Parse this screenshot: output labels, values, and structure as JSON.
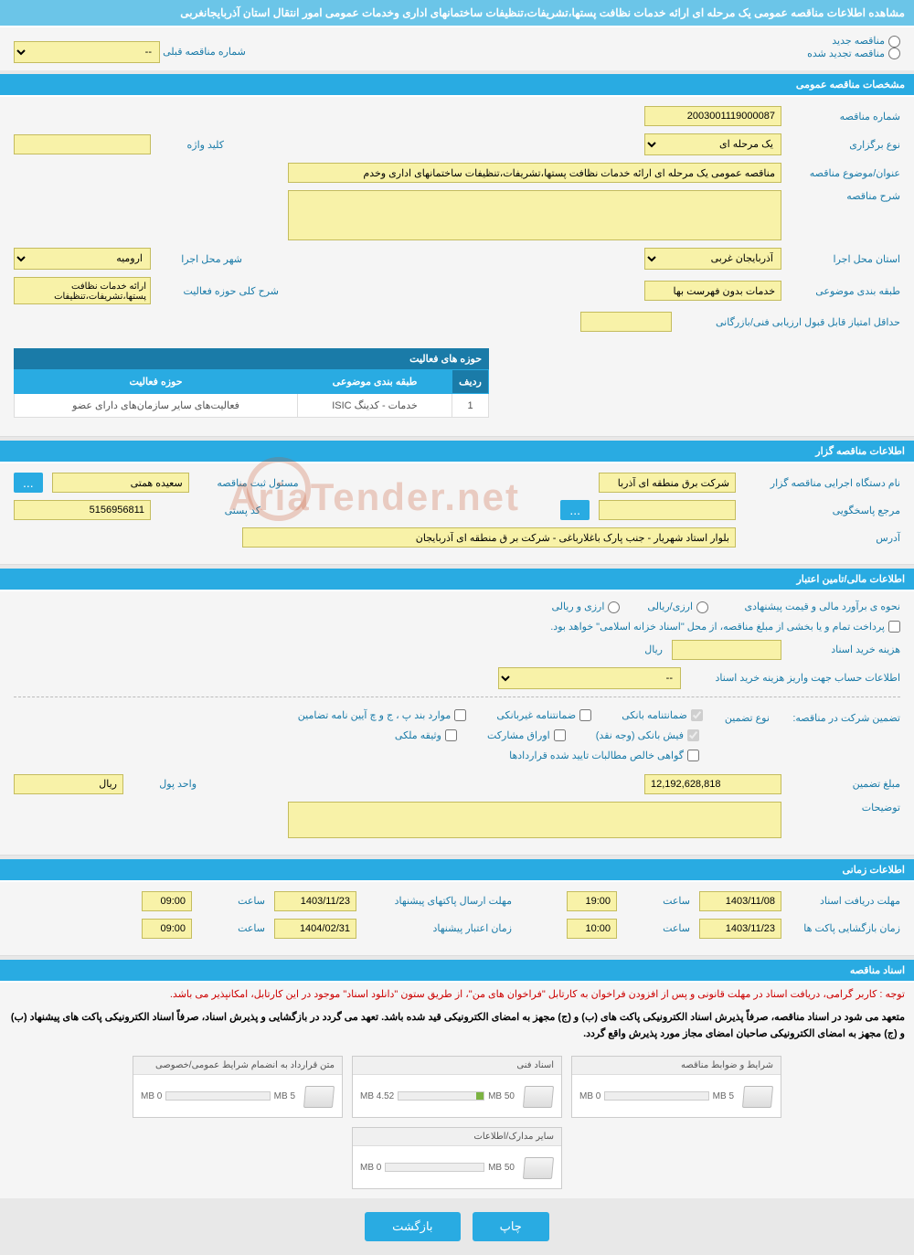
{
  "page_title": "مشاهده اطلاعات مناقصه عمومی یک مرحله ای ارائه خدمات نظافت پستها،تشریفات،تنظیفات ساختمانهای اداری وخدمات عمومی امور انتقال استان آذربایجانغربی",
  "radio_options": {
    "new": "مناقصه جدید",
    "renewed": "مناقصه تجدید شده"
  },
  "prev_tender": {
    "label": "شماره مناقصه قبلی",
    "value": "--"
  },
  "sections": {
    "general": "مشخصات مناقصه عمومی",
    "org": "اطلاعات مناقصه گزار",
    "financial": "اطلاعات مالی/تامین اعتبار",
    "timing": "اطلاعات زمانی",
    "docs": "اسناد مناقصه"
  },
  "general": {
    "tender_no": {
      "label": "شماره مناقصه",
      "value": "2003001119000087"
    },
    "type": {
      "label": "نوع برگزاری",
      "value": "یک مرحله ای"
    },
    "keyword": {
      "label": "کلید واژه",
      "value": ""
    },
    "subject": {
      "label": "عنوان/موضوع مناقصه",
      "value": "مناقصه عمومی یک مرحله ای ارائه خدمات نظافت پستها،تشریفات،تنظیفات ساختمانهای اداری وخدم"
    },
    "description": {
      "label": "شرح مناقصه",
      "value": ""
    },
    "province": {
      "label": "استان محل اجرا",
      "value": "آذربایجان غربی"
    },
    "city": {
      "label": "شهر محل اجرا",
      "value": "ارومیه"
    },
    "category": {
      "label": "طبقه بندی موضوعی",
      "value": "خدمات بدون فهرست بها"
    },
    "activity_scope": {
      "label": "شرح کلی حوزه فعالیت",
      "value": "ارائه خدمات نظافت پستها،تشریفات،تنظیفات"
    },
    "min_score": {
      "label": "حداقل امتیاز قابل قبول ارزیابی فنی/بازرگانی",
      "value": ""
    }
  },
  "activity_table": {
    "title": "حوزه های فعالیت",
    "headers": {
      "row": "ردیف",
      "category": "طبقه بندی موضوعی",
      "scope": "حوزه فعالیت"
    },
    "rows": [
      {
        "row": "1",
        "category": "خدمات - کدینگ ISIC",
        "scope": "فعالیت‌های سایر سازمان‌های دارای عضو"
      }
    ]
  },
  "org": {
    "exec_name": {
      "label": "نام دستگاه اجرایی مناقصه گزار",
      "value": "شرکت برق منطقه ای آذربا"
    },
    "reg_officer": {
      "label": "مسئول ثبت مناقصه",
      "value": "سعیده همتی"
    },
    "contact": {
      "label": "مرجع پاسخگویی",
      "value": ""
    },
    "postal": {
      "label": "کد پستی",
      "value": "5156956811"
    },
    "address": {
      "label": "آدرس",
      "value": "بلوار استاد شهریار - جنب پارک باغلارباغی - شرکت بر ق منطقه ای آذربایجان"
    }
  },
  "financial": {
    "estimate_label": "نحوه ی برآورد مالی و قیمت پیشنهادی",
    "opt_rl": "ارزی/ریالی",
    "opt_fx": "ارزی و ریالی",
    "treasury_note": "پرداخت تمام و یا بخشی از مبلغ مناقصه، از محل \"اسناد خزانه اسلامی\" خواهد بود.",
    "doc_cost": {
      "label": "هزینه خرید اسناد",
      "value": "",
      "unit": "ریال"
    },
    "payment_account": {
      "label": "اطلاعات حساب جهت واریز هزینه خرید اسناد",
      "value": "--"
    },
    "guarantee_label": "تضمین شرکت در مناقصه:",
    "guarantee_type_label": "نوع تضمین",
    "checks": {
      "bank_guarantee": "ضمانتنامه بانکی",
      "nonbank_guarantee": "ضمانتنامه غیربانکی",
      "items_bpjv": "موارد بند پ ، ج و چ آیین نامه تضامین",
      "cash": "فیش بانکی (وجه نقد)",
      "securities": "اوراق مشارکت",
      "property": "وثیقه ملکی",
      "receivables": "گواهی خالص مطالبات تایید شده قراردادها"
    },
    "guarantee_amount": {
      "label": "مبلغ تضمین",
      "value": "12,192,628,818"
    },
    "currency": {
      "label": "واحد پول",
      "value": "ریال"
    },
    "notes": {
      "label": "توضیحات",
      "value": ""
    }
  },
  "timing": {
    "receive_deadline": {
      "label": "مهلت دریافت اسناد",
      "date": "1403/11/08",
      "time_label": "ساعت",
      "time": "19:00"
    },
    "submit_deadline": {
      "label": "مهلت ارسال پاکتهای پیشنهاد",
      "date": "1403/11/23",
      "time_label": "ساعت",
      "time": "09:00"
    },
    "open_time": {
      "label": "زمان بازگشایی پاکت ها",
      "date": "1403/11/23",
      "time_label": "ساعت",
      "time": "10:00"
    },
    "validity": {
      "label": "زمان اعتبار پیشنهاد",
      "date": "1404/02/31",
      "time_label": "ساعت",
      "time": "09:00"
    }
  },
  "docs": {
    "notice1": "توجه : کاربر گرامی، دریافت اسناد در مهلت قانونی و پس از افزودن فراخوان به کارتابل \"فراخوان های من\"، از طریق ستون \"دانلود اسناد\" موجود در این کارتابل، امکانپذیر می باشد.",
    "notice2": "متعهد می شود در اسناد مناقصه، صرفاً پذیرش اسناد الکترونیکی پاکت های (ب) و (ج) مجهز به امضای الکترونیکی قید شده باشد. تعهد می گردد در بازگشایی و پذیرش اسناد، صرفاً اسناد الکترونیکی پاکت های پیشنهاد (ب) و (ج) مجهز به امضای الکترونیکی صاحبان امضای مجاز مورد پذیرش واقع گردد.",
    "files": [
      {
        "title": "شرایط و ضوابط مناقصه",
        "used": "0 MB",
        "max": "5 MB",
        "fill": 0
      },
      {
        "title": "اسناد فنی",
        "used": "4.52 MB",
        "max": "50 MB",
        "fill": 9
      },
      {
        "title": "متن قرارداد به انضمام شرایط عمومی/خصوصی",
        "used": "0 MB",
        "max": "5 MB",
        "fill": 0
      },
      {
        "title": "سایر مدارک/اطلاعات",
        "used": "0 MB",
        "max": "50 MB",
        "fill": 0
      }
    ]
  },
  "buttons": {
    "print": "چاپ",
    "back": "بازگشت",
    "more": "..."
  },
  "watermark": "AriaTender.net"
}
